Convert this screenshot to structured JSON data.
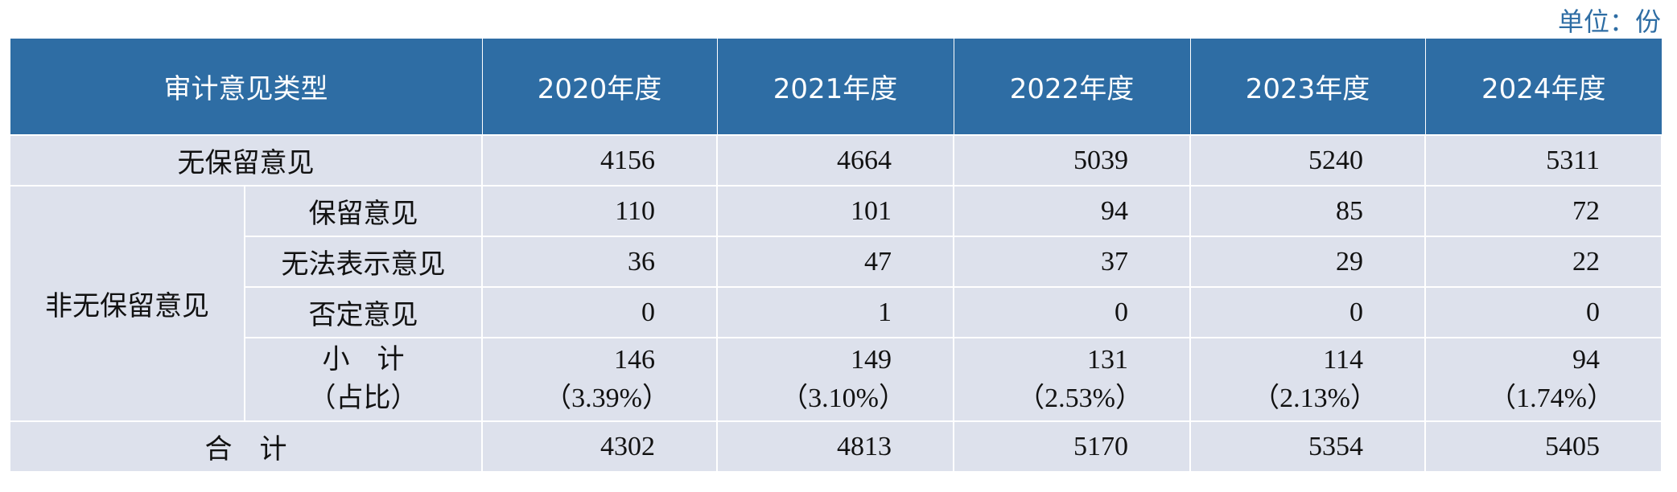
{
  "unit": "单位：份",
  "table": {
    "header": [
      "审计意见类型",
      "2020年度",
      "2021年度",
      "2022年度",
      "2023年度",
      "2024年度"
    ],
    "unqualified": {
      "label": "无保留意见",
      "values": [
        4156,
        4664,
        5039,
        5240,
        5311
      ]
    },
    "non_unqualified": {
      "label": "非无保留意见",
      "rows": [
        {
          "label": "保留意见",
          "values": [
            110,
            101,
            94,
            85,
            72
          ]
        },
        {
          "label": "无法表示意见",
          "values": [
            36,
            47,
            37,
            29,
            22
          ]
        },
        {
          "label": "否定意见",
          "values": [
            0,
            1,
            0,
            0,
            0
          ]
        }
      ],
      "subtotal": {
        "label": "小　计",
        "label2": "（占比）",
        "values": [
          146,
          149,
          131,
          114,
          94
        ],
        "shares": [
          "（3.39%）",
          "（3.10%）",
          "（2.53%）",
          "（2.13%）",
          "（1.74%）"
        ]
      }
    },
    "total": {
      "label": "合　计",
      "values": [
        4302,
        4813,
        5170,
        5354,
        5405
      ]
    }
  }
}
